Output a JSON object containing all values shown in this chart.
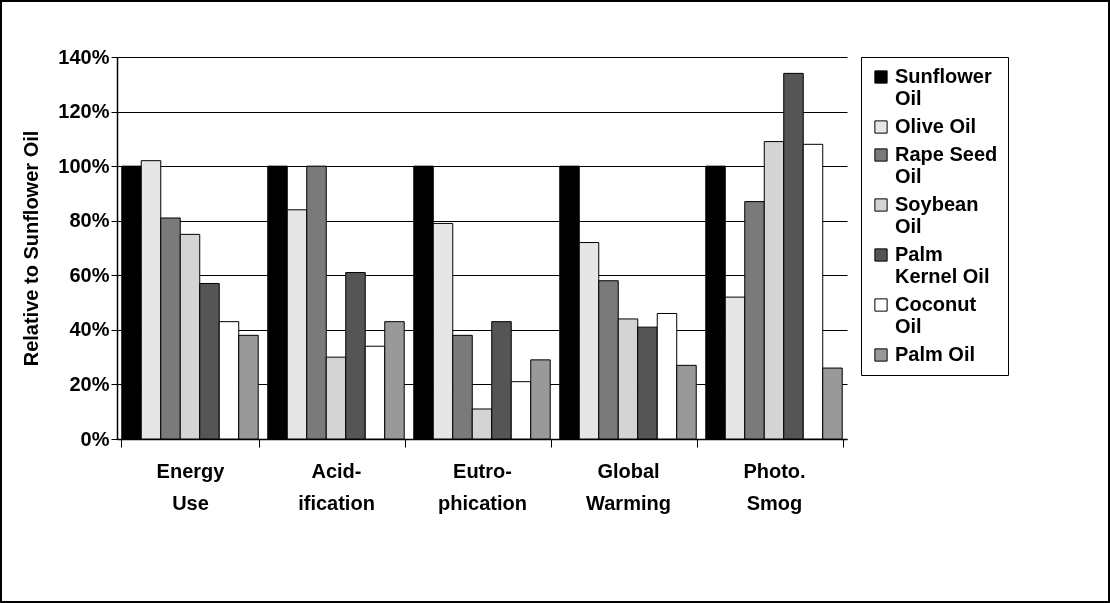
{
  "chart_data": {
    "type": "bar",
    "ylabel": "Relative to Sunflower Oil",
    "categories": [
      "Energy Use",
      "Acid-ification",
      "Eutro-phication",
      "Global Warming",
      "Photo. Smog"
    ],
    "series": [
      {
        "name": "Sunflower Oil",
        "color": "#000000",
        "values": [
          100,
          100,
          100,
          100,
          100
        ]
      },
      {
        "name": "Olive Oil",
        "color": "#e6e6e6",
        "values": [
          102,
          84,
          79,
          72,
          52
        ]
      },
      {
        "name": "Rape Seed Oil",
        "color": "#7a7a7a",
        "values": [
          81,
          100,
          38,
          58,
          87
        ]
      },
      {
        "name": "Soybean Oil",
        "color": "#d4d4d4",
        "values": [
          75,
          30,
          11,
          44,
          109
        ]
      },
      {
        "name": "Palm Kernel Oil",
        "color": "#555555",
        "values": [
          57,
          61,
          43,
          41,
          134
        ]
      },
      {
        "name": "Coconut Oil",
        "color": "#ffffff",
        "values": [
          43,
          34,
          21,
          46,
          108
        ]
      },
      {
        "name": "Palm Oil",
        "color": "#999999",
        "values": [
          38,
          43,
          29,
          27,
          26
        ]
      }
    ],
    "ylim": [
      0,
      140
    ],
    "yticks": [
      {
        "value": 0,
        "label": "0%"
      },
      {
        "value": 20,
        "label": "20%"
      },
      {
        "value": 40,
        "label": "40%"
      },
      {
        "value": 60,
        "label": "60%"
      },
      {
        "value": 80,
        "label": "80%"
      },
      {
        "value": 100,
        "label": "100%"
      },
      {
        "value": 120,
        "label": "120%"
      },
      {
        "value": 140,
        "label": "140%"
      }
    ],
    "grid": "y",
    "legend": "right"
  }
}
